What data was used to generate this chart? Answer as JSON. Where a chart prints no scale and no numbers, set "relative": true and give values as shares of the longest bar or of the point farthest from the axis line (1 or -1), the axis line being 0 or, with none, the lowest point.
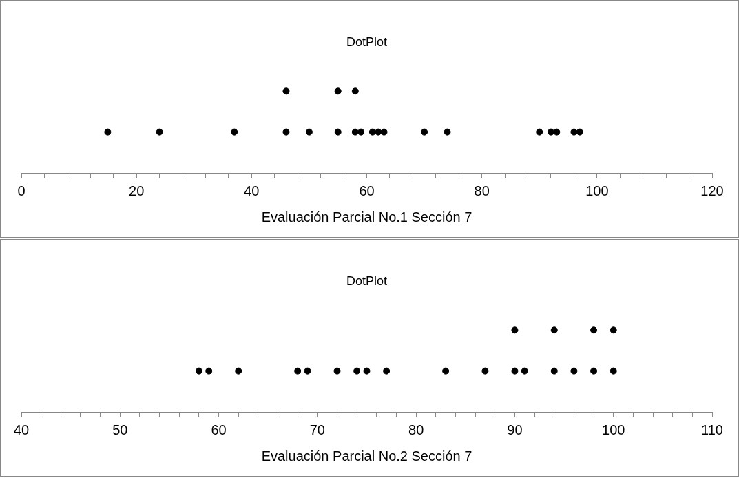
{
  "chart_data": [
    {
      "type": "scatter",
      "title": "DotPlot",
      "xlabel": "Evaluación Parcial No.1 Sección 7",
      "relative": true,
      "grid": false,
      "legend": false,
      "tick_labels": "x",
      "marker": "circle",
      "xlim": [
        0,
        120
      ],
      "xticks": [
        0,
        {
          "value": 4,
          "label": null
        },
        {
          "value": 8,
          "label": null
        },
        {
          "value": 12,
          "label": null
        },
        {
          "value": 16,
          "label": null
        },
        20,
        {
          "value": 24,
          "label": null
        },
        {
          "value": 28,
          "label": null
        },
        {
          "value": 32,
          "label": null
        },
        {
          "value": 36,
          "label": null
        },
        40,
        {
          "value": 44,
          "label": null
        },
        {
          "value": 48,
          "label": null
        },
        {
          "value": 52,
          "label": null
        },
        {
          "value": 56,
          "label": null
        },
        60,
        {
          "value": 64,
          "label": null
        },
        {
          "value": 68,
          "label": null
        },
        {
          "value": 72,
          "label": null
        },
        {
          "value": 76,
          "label": null
        },
        80,
        {
          "value": 84,
          "label": null
        },
        {
          "value": 88,
          "label": null
        },
        {
          "value": 92,
          "label": null
        },
        {
          "value": 96,
          "label": null
        },
        100,
        {
          "value": 104,
          "label": null
        },
        {
          "value": 108,
          "label": null
        },
        {
          "value": 112,
          "label": null
        },
        {
          "value": 116,
          "label": null
        },
        120
      ],
      "series": [
        {
          "color": "#000000",
          "x": [
            15,
            24,
            37,
            46,
            46,
            50,
            55,
            55,
            58,
            58,
            59,
            61,
            62,
            63,
            70,
            74,
            90,
            92,
            93,
            96,
            97
          ],
          "values": [
            0.5,
            0.5,
            0.5,
            0.5,
            1,
            0.5,
            0.5,
            1,
            0.5,
            1,
            0.5,
            0.5,
            0.5,
            0.5,
            0.5,
            0.5,
            0.5,
            0.5,
            0.5,
            0.5,
            0.5
          ]
        }
      ]
    },
    {
      "type": "scatter",
      "title": "DotPlot",
      "xlabel": "Evaluación Parcial No.2 Sección 7",
      "relative": true,
      "grid": false,
      "legend": false,
      "tick_labels": "x",
      "marker": "circle",
      "xlim": [
        40,
        110
      ],
      "xticks": [
        40,
        {
          "value": 42,
          "label": null
        },
        {
          "value": 44,
          "label": null
        },
        {
          "value": 46,
          "label": null
        },
        {
          "value": 48,
          "label": null
        },
        50,
        {
          "value": 52,
          "label": null
        },
        {
          "value": 54,
          "label": null
        },
        {
          "value": 56,
          "label": null
        },
        {
          "value": 58,
          "label": null
        },
        60,
        {
          "value": 62,
          "label": null
        },
        {
          "value": 64,
          "label": null
        },
        {
          "value": 66,
          "label": null
        },
        {
          "value": 68,
          "label": null
        },
        70,
        {
          "value": 72,
          "label": null
        },
        {
          "value": 74,
          "label": null
        },
        {
          "value": 76,
          "label": null
        },
        {
          "value": 78,
          "label": null
        },
        80,
        {
          "value": 82,
          "label": null
        },
        {
          "value": 84,
          "label": null
        },
        {
          "value": 86,
          "label": null
        },
        {
          "value": 88,
          "label": null
        },
        90,
        {
          "value": 92,
          "label": null
        },
        {
          "value": 94,
          "label": null
        },
        {
          "value": 96,
          "label": null
        },
        {
          "value": 98,
          "label": null
        },
        100,
        {
          "value": 102,
          "label": null
        },
        {
          "value": 104,
          "label": null
        },
        {
          "value": 106,
          "label": null
        },
        {
          "value": 108,
          "label": null
        },
        110
      ],
      "series": [
        {
          "color": "#000000",
          "x": [
            58,
            59,
            62,
            68,
            69,
            72,
            74,
            75,
            77,
            83,
            87,
            90,
            90,
            91,
            94,
            94,
            96,
            98,
            98,
            100,
            100
          ],
          "values": [
            0.5,
            0.5,
            0.5,
            0.5,
            0.5,
            0.5,
            0.5,
            0.5,
            0.5,
            0.5,
            0.5,
            0.5,
            1,
            0.5,
            0.5,
            1,
            0.5,
            0.5,
            1,
            0.5,
            1
          ]
        }
      ]
    }
  ]
}
